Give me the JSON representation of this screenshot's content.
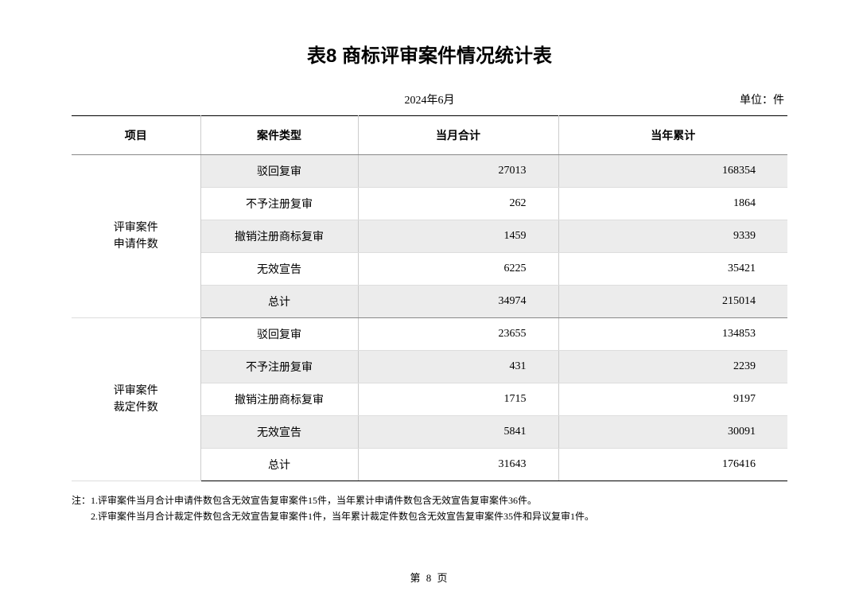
{
  "title": "表8 商标评审案件情况统计表",
  "meta": {
    "date": "2024年6月",
    "unit": "单位：件"
  },
  "table": {
    "headers": {
      "item": "项目",
      "case_type": "案件类型",
      "month_total": "当月合计",
      "year_total": "当年累计"
    },
    "groups": [
      {
        "category_line1": "评审案件",
        "category_line2": "申请件数",
        "rows": [
          {
            "type": "驳回复审",
            "month": "27013",
            "year": "168354",
            "shade": true
          },
          {
            "type": "不予注册复审",
            "month": "262",
            "year": "1864",
            "shade": false
          },
          {
            "type": "撤销注册商标复审",
            "month": "1459",
            "year": "9339",
            "shade": true
          },
          {
            "type": "无效宣告",
            "month": "6225",
            "year": "35421",
            "shade": false
          },
          {
            "type": "总计",
            "month": "34974",
            "year": "215014",
            "shade": true
          }
        ]
      },
      {
        "category_line1": "评审案件",
        "category_line2": "裁定件数",
        "rows": [
          {
            "type": "驳回复审",
            "month": "23655",
            "year": "134853",
            "shade": false
          },
          {
            "type": "不予注册复审",
            "month": "431",
            "year": "2239",
            "shade": true
          },
          {
            "type": "撤销注册商标复审",
            "month": "1715",
            "year": "9197",
            "shade": false
          },
          {
            "type": "无效宣告",
            "month": "5841",
            "year": "30091",
            "shade": true
          },
          {
            "type": "总计",
            "month": "31643",
            "year": "176416",
            "shade": false
          }
        ]
      }
    ]
  },
  "notes": {
    "line1": "注：1.评审案件当月合计申请件数包含无效宣告复审案件15件，当年累计申请件数包含无效宣告复审案件36件。",
    "line2": "　　2.评审案件当月合计裁定件数包含无效宣告复审案件1件，当年累计裁定件数包含无效宣告复审案件35件和异议复审1件。"
  },
  "page": "第  8  页"
}
